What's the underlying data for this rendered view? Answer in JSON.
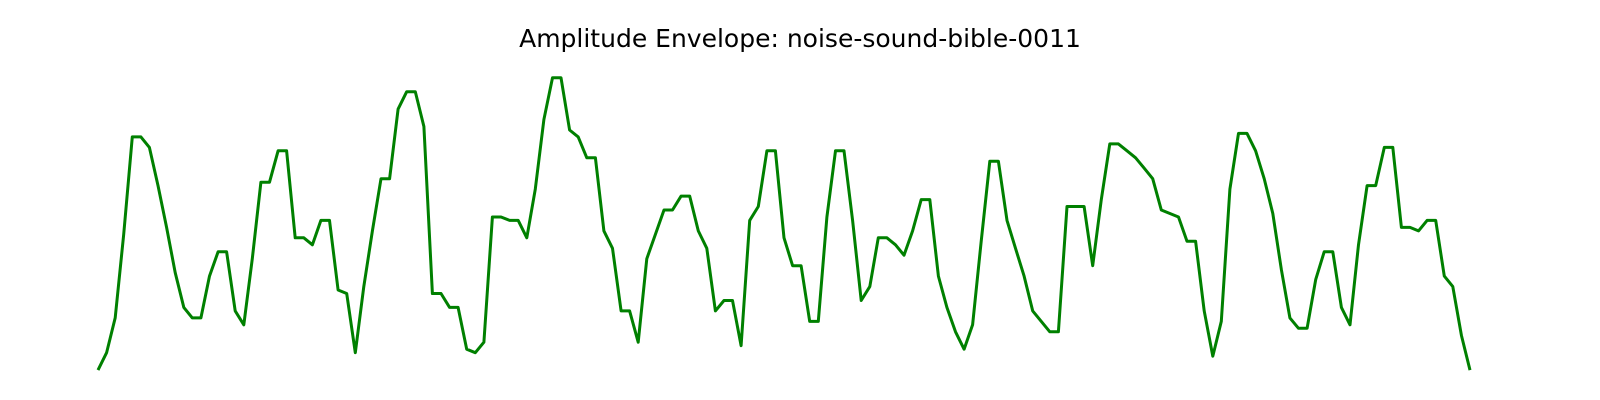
{
  "chart_data": {
    "type": "line",
    "title": "Amplitude Envelope: noise-sound-bible-0011",
    "xlabel": "",
    "ylabel": "",
    "axes_visible": false,
    "grid": false,
    "line_color": "#008000",
    "ylim": [
      0,
      1
    ],
    "series": [
      {
        "values": [
          0.04,
          0.09,
          0.19,
          0.43,
          0.71,
          0.71,
          0.68,
          0.57,
          0.45,
          0.32,
          0.22,
          0.19,
          0.19,
          0.31,
          0.38,
          0.38,
          0.21,
          0.17,
          0.36,
          0.58,
          0.58,
          0.67,
          0.67,
          0.42,
          0.42,
          0.4,
          0.47,
          0.47,
          0.27,
          0.26,
          0.09,
          0.28,
          0.44,
          0.59,
          0.59,
          0.79,
          0.84,
          0.84,
          0.74,
          0.26,
          0.26,
          0.22,
          0.22,
          0.1,
          0.09,
          0.12,
          0.48,
          0.48,
          0.47,
          0.47,
          0.42,
          0.56,
          0.76,
          0.88,
          0.88,
          0.73,
          0.71,
          0.65,
          0.65,
          0.44,
          0.39,
          0.21,
          0.21,
          0.12,
          0.36,
          0.43,
          0.5,
          0.5,
          0.54,
          0.54,
          0.44,
          0.39,
          0.21,
          0.24,
          0.24,
          0.11,
          0.47,
          0.51,
          0.67,
          0.67,
          0.42,
          0.34,
          0.34,
          0.18,
          0.18,
          0.48,
          0.67,
          0.67,
          0.47,
          0.24,
          0.28,
          0.42,
          0.42,
          0.4,
          0.37,
          0.44,
          0.53,
          0.53,
          0.31,
          0.22,
          0.15,
          0.1,
          0.17,
          0.41,
          0.64,
          0.64,
          0.47,
          0.39,
          0.31,
          0.21,
          0.18,
          0.15,
          0.15,
          0.51,
          0.51,
          0.51,
          0.34,
          0.53,
          0.69,
          0.69,
          0.67,
          0.65,
          0.62,
          0.59,
          0.5,
          0.49,
          0.48,
          0.41,
          0.41,
          0.21,
          0.08,
          0.18,
          0.56,
          0.72,
          0.72,
          0.67,
          0.59,
          0.49,
          0.33,
          0.19,
          0.16,
          0.16,
          0.3,
          0.38,
          0.38,
          0.22,
          0.17,
          0.4,
          0.57,
          0.57,
          0.68,
          0.68,
          0.45,
          0.45,
          0.44,
          0.47,
          0.47,
          0.31,
          0.28,
          0.14,
          0.04
        ]
      }
    ]
  }
}
